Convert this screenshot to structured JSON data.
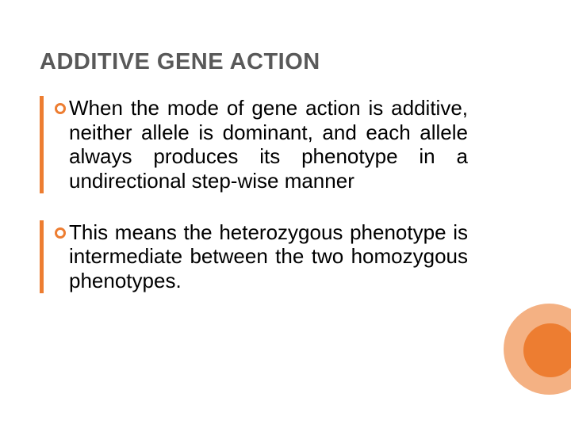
{
  "slide": {
    "title": "ADDITIVE GENE ACTION",
    "bullets": [
      {
        "text": "When the mode of gene action is additive, neither allele is dominant, and each allele always produces its phenotype in a undirectional step-wise manner"
      },
      {
        "text": "This means the heterozygous phenotype is intermediate between the two homozygous phenotypes."
      }
    ]
  },
  "style": {
    "heading_color": "#595959",
    "heading_fontsize": 29,
    "body_fontsize": 26,
    "body_color": "#000000",
    "accent_color": "#ed7d31",
    "bullet_border_color": "#ed7d31",
    "decor_outer_color": "#f4b183",
    "decor_inner_color": "#ed7d31",
    "background_color": "#ffffff"
  }
}
